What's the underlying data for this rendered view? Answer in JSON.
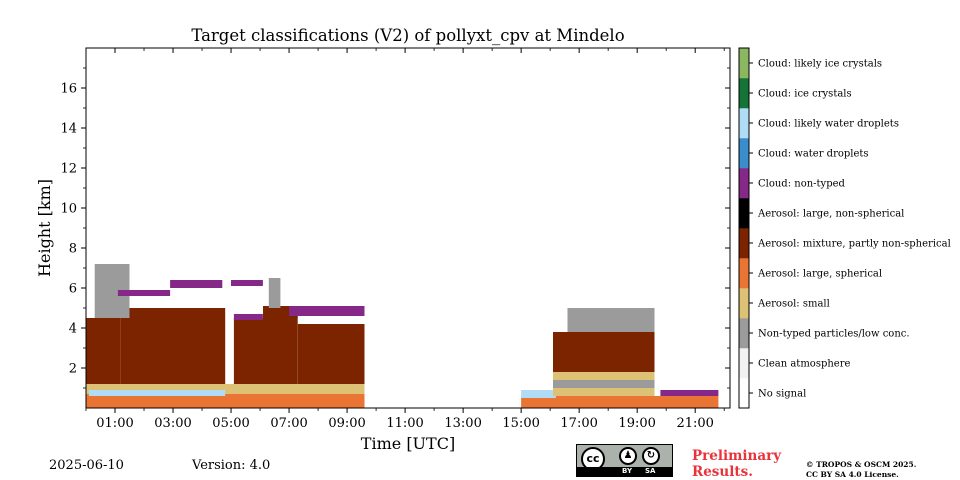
{
  "chart_data": {
    "type": "heatmap",
    "title": "Target classifications (V2) of pollyxt_cpv at Mindelo",
    "xlabel": "Time [UTC]",
    "ylabel": "Height [km]",
    "xlim": [
      0,
      22.2
    ],
    "ylim": [
      0,
      18
    ],
    "xtick_labels": [
      "01:00",
      "03:00",
      "05:00",
      "07:00",
      "09:00",
      "11:00",
      "13:00",
      "15:00",
      "17:00",
      "19:00",
      "21:00"
    ],
    "xtick_values": [
      1,
      3,
      5,
      7,
      9,
      11,
      13,
      15,
      17,
      19,
      21
    ],
    "ytick_labels": [
      "2",
      "4",
      "6",
      "8",
      "10",
      "12",
      "14",
      "16"
    ],
    "ytick_values": [
      2,
      4,
      6,
      8,
      10,
      12,
      14,
      16
    ],
    "classes": [
      {
        "label": "No signal",
        "color": "#ffffff"
      },
      {
        "label": "Clean atmosphere",
        "color": "#f2f2f2"
      },
      {
        "label": "Non-typed particles/low conc.",
        "color": "#9b9b9b"
      },
      {
        "label": "Aerosol: small",
        "color": "#ddc175"
      },
      {
        "label": "Aerosol: large, spherical",
        "color": "#ea7434"
      },
      {
        "label": "Aerosol: mixture, partly non-spherical",
        "color": "#7c2300"
      },
      {
        "label": "Aerosol: large, non-spherical",
        "color": "#000000"
      },
      {
        "label": "Cloud: non-typed",
        "color": "#852888"
      },
      {
        "label": "Cloud: water droplets",
        "color": "#3b8ccb"
      },
      {
        "label": "Cloud: likely water droplets",
        "color": "#b1dcf6"
      },
      {
        "label": "Cloud: ice crystals",
        "color": "#147437"
      },
      {
        "label": "Cloud: likely ice crystals",
        "color": "#8bb761"
      }
    ],
    "regions": [
      {
        "class": 4,
        "t0": 0.0,
        "t1": 9.6,
        "h0": 0.0,
        "h1": 0.7
      },
      {
        "class": 3,
        "t0": 0.0,
        "t1": 9.6,
        "h0": 0.7,
        "h1": 1.2
      },
      {
        "class": 9,
        "t0": 0.1,
        "t1": 4.8,
        "h0": 0.6,
        "h1": 0.9
      },
      {
        "class": 5,
        "t0": 0.0,
        "t1": 1.2,
        "h0": 1.2,
        "h1": 4.5
      },
      {
        "class": 5,
        "t0": 1.2,
        "t1": 4.8,
        "h0": 1.2,
        "h1": 5.0
      },
      {
        "class": 5,
        "t0": 5.1,
        "t1": 7.3,
        "h0": 1.2,
        "h1": 4.5
      },
      {
        "class": 5,
        "t0": 6.1,
        "t1": 7.3,
        "h0": 4.5,
        "h1": 5.1
      },
      {
        "class": 5,
        "t0": 7.3,
        "t1": 9.6,
        "h0": 1.2,
        "h1": 4.2
      },
      {
        "class": 2,
        "t0": 0.3,
        "t1": 1.5,
        "h0": 4.5,
        "h1": 7.2
      },
      {
        "class": 2,
        "t0": 6.3,
        "t1": 6.7,
        "h0": 5.0,
        "h1": 6.5
      },
      {
        "class": 7,
        "t0": 2.9,
        "t1": 4.7,
        "h0": 6.0,
        "h1": 6.4
      },
      {
        "class": 7,
        "t0": 5.0,
        "t1": 6.1,
        "h0": 6.1,
        "h1": 6.4
      },
      {
        "class": 7,
        "t0": 1.1,
        "t1": 2.9,
        "h0": 5.6,
        "h1": 5.9
      },
      {
        "class": 7,
        "t0": 5.1,
        "t1": 6.1,
        "h0": 4.4,
        "h1": 4.7
      },
      {
        "class": 7,
        "t0": 7.0,
        "t1": 9.6,
        "h0": 4.6,
        "h1": 5.1
      },
      {
        "class": 4,
        "t0": 15.0,
        "t1": 21.8,
        "h0": 0.0,
        "h1": 0.6
      },
      {
        "class": 9,
        "t0": 15.0,
        "t1": 16.2,
        "h0": 0.5,
        "h1": 0.9
      },
      {
        "class": 7,
        "t0": 19.8,
        "t1": 21.8,
        "h0": 0.6,
        "h1": 0.9
      },
      {
        "class": 3,
        "t0": 16.1,
        "t1": 19.6,
        "h0": 0.6,
        "h1": 1.8
      },
      {
        "class": 2,
        "t0": 16.1,
        "t1": 19.6,
        "h0": 1.0,
        "h1": 1.4
      },
      {
        "class": 5,
        "t0": 16.1,
        "t1": 19.6,
        "h0": 1.8,
        "h1": 3.8
      },
      {
        "class": 2,
        "t0": 16.6,
        "t1": 19.6,
        "h0": 3.8,
        "h1": 5.0
      }
    ]
  },
  "footer": {
    "date": "2025-06-10",
    "version": "Version: 4.0",
    "preliminary_line1": "Preliminary",
    "preliminary_line2": "Results.",
    "copyright_line1": "© TROPOS & OSCM 2025.",
    "copyright_line2": "CC BY SA 4.0 License.",
    "license_badge": {
      "cc": "cc",
      "by": "BY",
      "sa": "SA"
    }
  }
}
